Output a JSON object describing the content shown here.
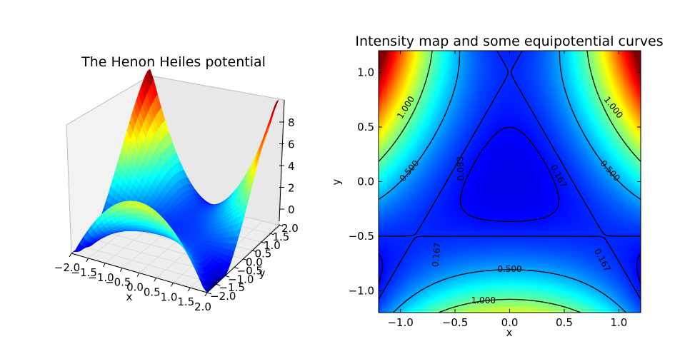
{
  "chart_data": [
    {
      "type": "surface3d",
      "title": "The Henon Heiles potential",
      "xlabel": "x",
      "ylabel": "y",
      "zlabel": "",
      "function": "0.5*(x^2+y^2) + x^2*y - y^3/3",
      "x_range": [
        -2.0,
        2.0
      ],
      "y_range": [
        -2.0,
        2.0
      ],
      "zlim": [
        -1,
        9
      ],
      "x_ticks": [
        "−2.0",
        "−1.5",
        "−1.0",
        "−0.5",
        "0.0",
        "0.5",
        "1.0",
        "1.5",
        "2.0"
      ],
      "y_ticks": [
        "−2.0",
        "−1.5",
        "−1.0",
        "−0.5",
        "0.0",
        "0.5",
        "1.0",
        "1.5",
        "2.0"
      ],
      "z_ticks": [
        "0",
        "2",
        "4",
        "6",
        "8"
      ],
      "colormap": "jet"
    },
    {
      "type": "heatmap",
      "title": "Intensity map and some equipotential curves",
      "xlabel": "x",
      "ylabel": "y",
      "xlim": [
        -1.2,
        1.2
      ],
      "ylim": [
        -1.2,
        1.2
      ],
      "x_ticks": [
        "−1.0",
        "−0.5",
        "0.0",
        "0.5",
        "1.0"
      ],
      "y_ticks": [
        "−1.0",
        "−0.5",
        "0.0",
        "0.5",
        "1.0"
      ],
      "colormap": "jet",
      "contour_levels": [
        0.083,
        0.167,
        0.5,
        1.0
      ],
      "contour_labels": [
        "0.083",
        "0.167",
        "0.167",
        "0.167",
        "0.500",
        "0.500",
        "0.500",
        "1.000",
        "1.000",
        "1.000"
      ]
    }
  ]
}
